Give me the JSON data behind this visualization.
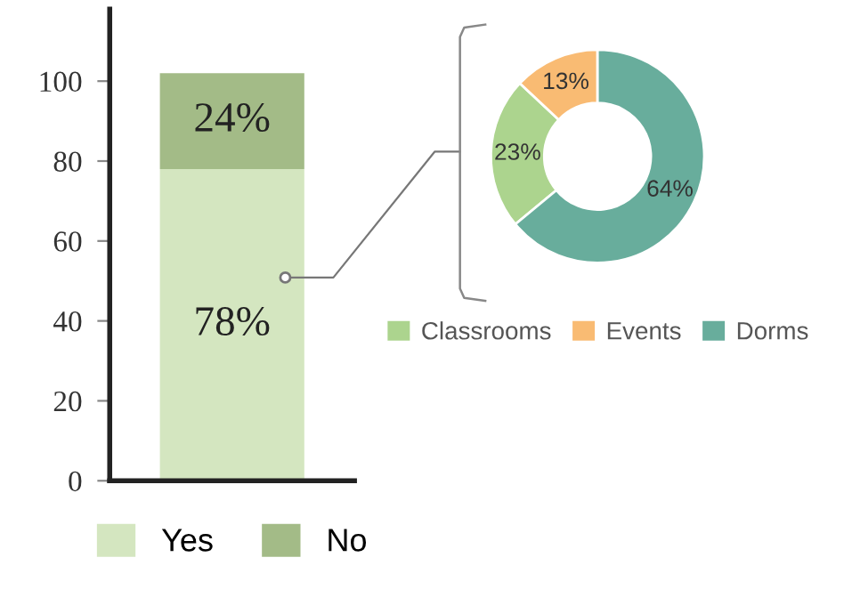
{
  "chart_data": [
    {
      "type": "bar",
      "stacked": true,
      "categories": [
        null
      ],
      "ylim": [
        0,
        118
      ],
      "yticks": [
        0,
        20,
        40,
        60,
        80,
        100
      ],
      "grid": false,
      "legend": "bottom",
      "series": [
        {
          "name": "Yes",
          "color": "#d4e6c0",
          "values": [
            78
          ],
          "value_labels": [
            "78%"
          ]
        },
        {
          "name": "No",
          "color": "#a3bb87",
          "values": [
            24
          ],
          "value_labels": [
            "24%"
          ]
        }
      ]
    },
    {
      "type": "donut",
      "categories": [
        "Classrooms",
        "Events",
        "Dorms"
      ],
      "values": [
        23,
        13,
        64
      ],
      "colors": [
        "#acd48e",
        "#f9bb73",
        "#68ad9c"
      ],
      "value_labels": [
        "23%",
        "13%",
        "64%"
      ],
      "legend": "bottom"
    }
  ]
}
